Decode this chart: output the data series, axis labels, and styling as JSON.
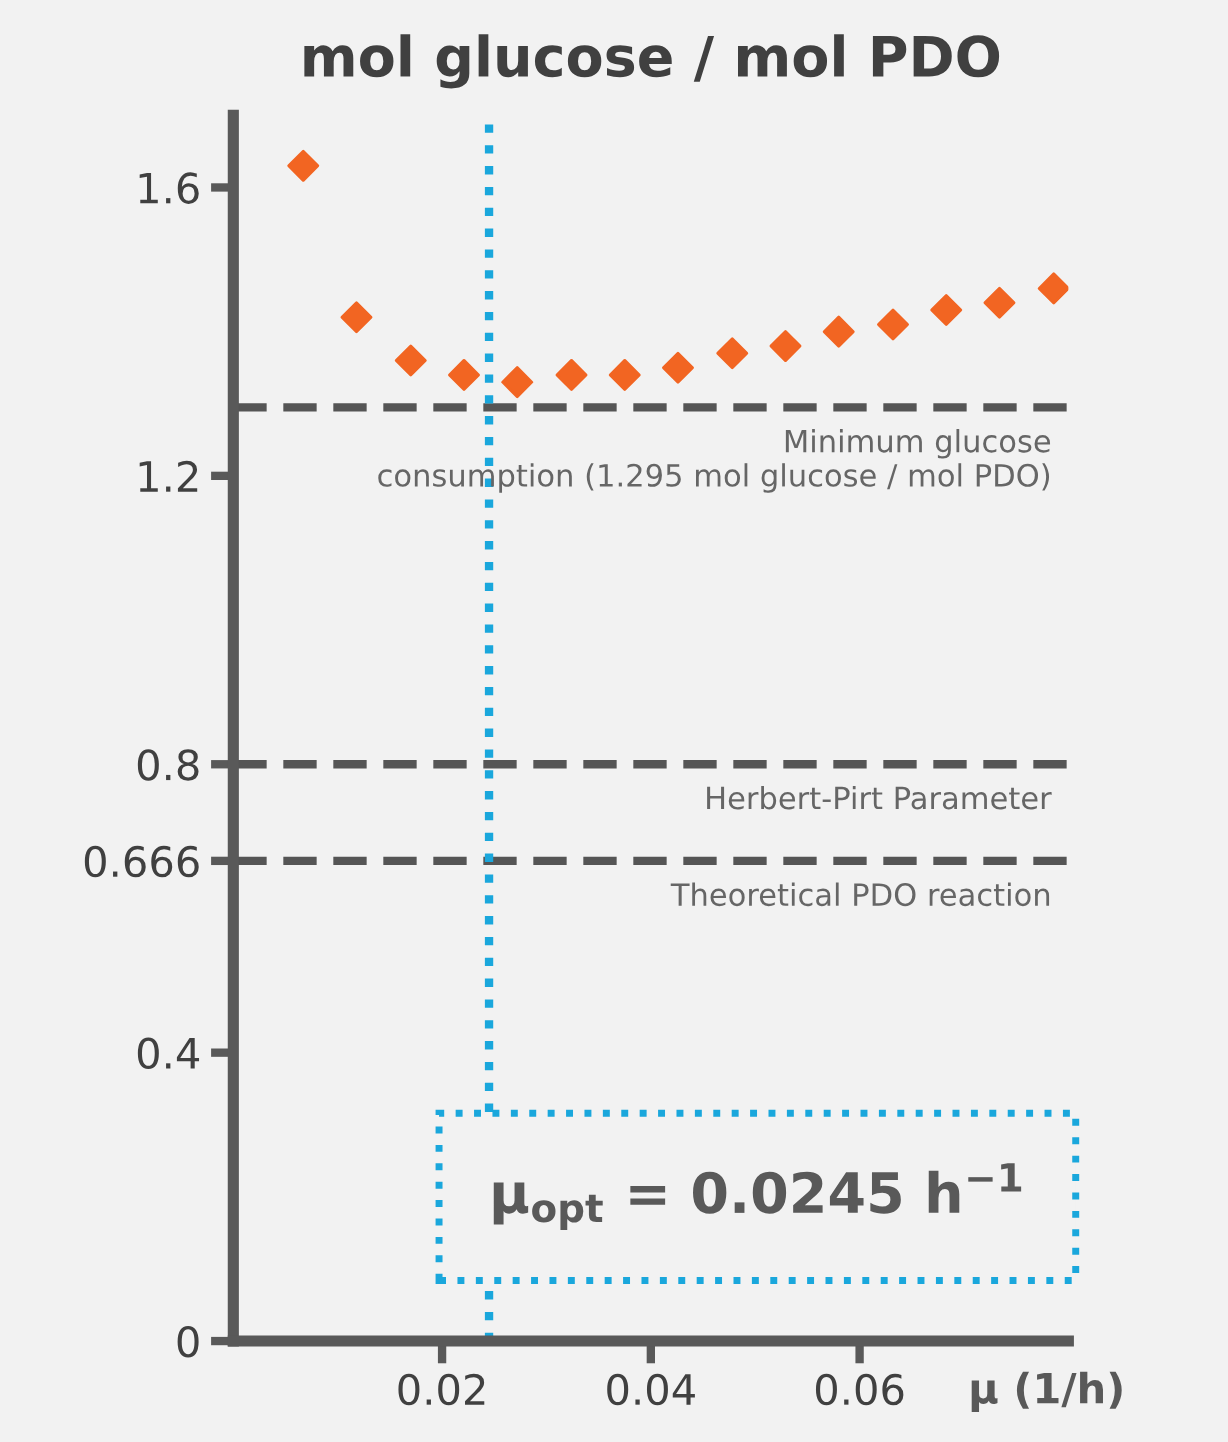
{
  "chart_data": {
    "type": "scatter",
    "title": "mol glucose / mol PDO",
    "xlabel": "μ (1/h)",
    "x": [
      0.0067,
      0.0118,
      0.017,
      0.0221,
      0.0272,
      0.0324,
      0.0375,
      0.0426,
      0.0478,
      0.0529,
      0.058,
      0.0632,
      0.0683,
      0.0734,
      0.0786
    ],
    "series": [
      {
        "color": "#f26522",
        "values": [
          1.63,
          1.42,
          1.36,
          1.34,
          1.33,
          1.34,
          1.34,
          1.35,
          1.37,
          1.38,
          1.4,
          1.41,
          1.43,
          1.44,
          1.46
        ]
      }
    ],
    "marker": "diamond",
    "grid": false,
    "xlim": [
      0,
      0.08
    ],
    "ylim": [
      0,
      1.7
    ],
    "xticks": [
      0.02,
      0.04,
      0.06
    ],
    "yticks": [
      0,
      0.4,
      0.666,
      0.8,
      1.2,
      1.6
    ],
    "ref_lines": [
      {
        "axis": "y",
        "value": 1.295,
        "label": "Minimum glucose\nconsumption (1.295 mol glucose / mol PDO)",
        "color": "#555555",
        "line_style": "dashed"
      },
      {
        "axis": "y",
        "value": 0.8,
        "label": "Herbert-Pirt Parameter",
        "color": "#555555",
        "line_style": "dashed"
      },
      {
        "axis": "y",
        "value": 0.666,
        "label": "Theoretical PDO reaction",
        "color": "#555555",
        "line_style": "dashed"
      },
      {
        "axis": "x",
        "value": 0.0245,
        "color": "#1aa7dc",
        "line_style": "dotted"
      }
    ],
    "annotations": [
      {
        "text": "μ$_{opt}$ = 0.0245 h$^{−1}$",
        "x": 0.0245,
        "y": 0.2
      }
    ]
  }
}
